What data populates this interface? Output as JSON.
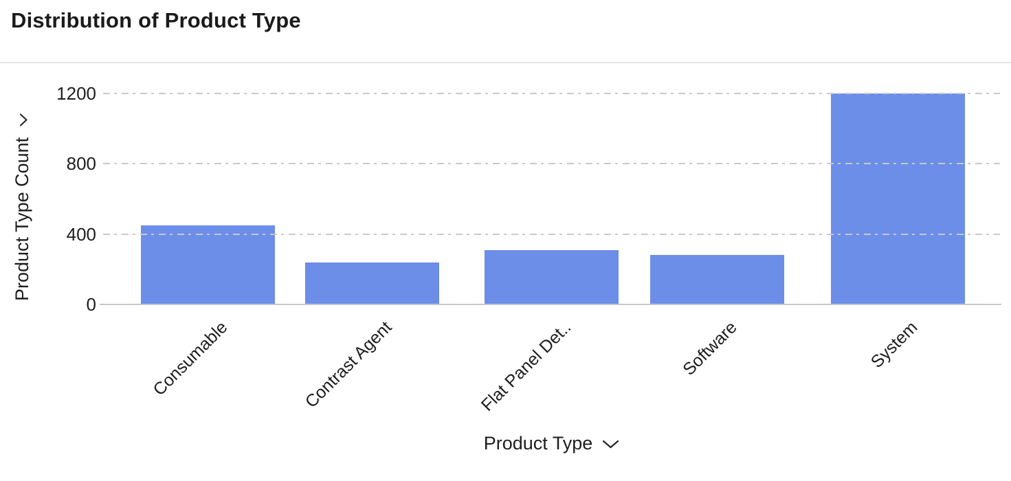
{
  "header": {
    "title": "Distribution of Product Type"
  },
  "chart_data": {
    "type": "bar",
    "title": "Distribution of Product Type",
    "categories": [
      "Consumable",
      "Contrast Agent",
      "Flat Panel Det..",
      "Software",
      "System"
    ],
    "values": [
      450,
      240,
      310,
      280,
      1200
    ],
    "xlabel": "Product Type",
    "ylabel": "Product Type Count",
    "yticks": [
      0,
      400,
      800,
      1200
    ],
    "ylim": [
      0,
      1200
    ],
    "grid": "horizontal-dashed",
    "legend": "none",
    "bar_color": "#6C8EE9",
    "grid_color": "#C9C9C9",
    "text_color": "#1D1D1D"
  },
  "icons": {
    "y_axis_chevron": "chevron-down-icon",
    "x_axis_chevron": "chevron-down-icon"
  }
}
